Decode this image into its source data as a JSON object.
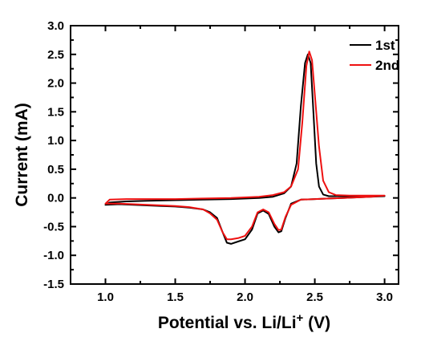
{
  "chart_data": {
    "type": "line",
    "xlabel": "Potential vs. Li/Li",
    "xlabel_superscript": "+",
    "xlabel_unit": " (V)",
    "ylabel": "Current (mA)",
    "xlim": [
      0.75,
      3.1
    ],
    "ylim": [
      -1.5,
      3.0
    ],
    "xticks": [
      1.0,
      1.5,
      2.0,
      2.5,
      3.0
    ],
    "xtick_labels": [
      "1.0",
      "1.5",
      "2.0",
      "2.5",
      "3.0"
    ],
    "yticks": [
      -1.5,
      -1.0,
      -0.5,
      0.0,
      0.5,
      1.0,
      1.5,
      2.0,
      2.5,
      3.0
    ],
    "ytick_labels": [
      "-1.5",
      "-1.0",
      "-0.5",
      "0.0",
      "0.5",
      "1.0",
      "1.5",
      "2.0",
      "2.5",
      "3.0"
    ],
    "grid": false,
    "legend_position": "top-right",
    "series": [
      {
        "name": "1st",
        "color": "#000000",
        "points": [
          [
            3.0,
            0.03
          ],
          [
            2.9,
            0.02
          ],
          [
            2.8,
            0.01
          ],
          [
            2.7,
            0.0
          ],
          [
            2.6,
            -0.01
          ],
          [
            2.5,
            -0.02
          ],
          [
            2.4,
            -0.03
          ],
          [
            2.33,
            -0.1
          ],
          [
            2.29,
            -0.35
          ],
          [
            2.26,
            -0.58
          ],
          [
            2.24,
            -0.6
          ],
          [
            2.21,
            -0.5
          ],
          [
            2.17,
            -0.28
          ],
          [
            2.13,
            -0.22
          ],
          [
            2.09,
            -0.27
          ],
          [
            2.05,
            -0.55
          ],
          [
            2.0,
            -0.72
          ],
          [
            1.95,
            -0.76
          ],
          [
            1.9,
            -0.8
          ],
          [
            1.87,
            -0.78
          ],
          [
            1.84,
            -0.6
          ],
          [
            1.8,
            -0.35
          ],
          [
            1.75,
            -0.25
          ],
          [
            1.7,
            -0.2
          ],
          [
            1.6,
            -0.17
          ],
          [
            1.5,
            -0.15
          ],
          [
            1.4,
            -0.14
          ],
          [
            1.3,
            -0.13
          ],
          [
            1.2,
            -0.12
          ],
          [
            1.1,
            -0.11
          ],
          [
            1.0,
            -0.12
          ],
          [
            1.03,
            -0.08
          ],
          [
            1.15,
            -0.06
          ],
          [
            1.3,
            -0.05
          ],
          [
            1.5,
            -0.04
          ],
          [
            1.7,
            -0.03
          ],
          [
            1.9,
            -0.02
          ],
          [
            2.1,
            0.0
          ],
          [
            2.2,
            0.02
          ],
          [
            2.28,
            0.08
          ],
          [
            2.33,
            0.2
          ],
          [
            2.37,
            0.6
          ],
          [
            2.4,
            1.6
          ],
          [
            2.43,
            2.35
          ],
          [
            2.45,
            2.5
          ],
          [
            2.47,
            2.35
          ],
          [
            2.49,
            1.5
          ],
          [
            2.51,
            0.6
          ],
          [
            2.53,
            0.2
          ],
          [
            2.56,
            0.06
          ],
          [
            2.6,
            0.03
          ],
          [
            2.7,
            0.03
          ],
          [
            2.85,
            0.03
          ],
          [
            3.0,
            0.03
          ]
        ]
      },
      {
        "name": "2nd",
        "color": "#ee1111",
        "points": [
          [
            3.0,
            0.04
          ],
          [
            2.9,
            0.02
          ],
          [
            2.8,
            0.01
          ],
          [
            2.7,
            0.0
          ],
          [
            2.6,
            -0.01
          ],
          [
            2.5,
            -0.02
          ],
          [
            2.4,
            -0.03
          ],
          [
            2.33,
            -0.12
          ],
          [
            2.29,
            -0.33
          ],
          [
            2.26,
            -0.55
          ],
          [
            2.24,
            -0.56
          ],
          [
            2.21,
            -0.45
          ],
          [
            2.17,
            -0.25
          ],
          [
            2.13,
            -0.2
          ],
          [
            2.09,
            -0.25
          ],
          [
            2.05,
            -0.5
          ],
          [
            2.0,
            -0.66
          ],
          [
            1.95,
            -0.7
          ],
          [
            1.9,
            -0.72
          ],
          [
            1.87,
            -0.72
          ],
          [
            1.84,
            -0.6
          ],
          [
            1.8,
            -0.38
          ],
          [
            1.75,
            -0.27
          ],
          [
            1.7,
            -0.2
          ],
          [
            1.6,
            -0.16
          ],
          [
            1.5,
            -0.14
          ],
          [
            1.4,
            -0.13
          ],
          [
            1.3,
            -0.12
          ],
          [
            1.2,
            -0.11
          ],
          [
            1.1,
            -0.1
          ],
          [
            1.0,
            -0.1
          ],
          [
            1.03,
            -0.03
          ],
          [
            1.15,
            -0.02
          ],
          [
            1.3,
            -0.02
          ],
          [
            1.5,
            -0.02
          ],
          [
            1.7,
            -0.01
          ],
          [
            1.9,
            0.0
          ],
          [
            2.1,
            0.02
          ],
          [
            2.2,
            0.05
          ],
          [
            2.28,
            0.1
          ],
          [
            2.33,
            0.2
          ],
          [
            2.38,
            0.5
          ],
          [
            2.41,
            1.3
          ],
          [
            2.44,
            2.3
          ],
          [
            2.46,
            2.55
          ],
          [
            2.48,
            2.4
          ],
          [
            2.5,
            1.8
          ],
          [
            2.53,
            0.9
          ],
          [
            2.56,
            0.3
          ],
          [
            2.6,
            0.1
          ],
          [
            2.65,
            0.05
          ],
          [
            2.75,
            0.04
          ],
          [
            2.9,
            0.04
          ],
          [
            3.0,
            0.04
          ]
        ]
      }
    ]
  }
}
